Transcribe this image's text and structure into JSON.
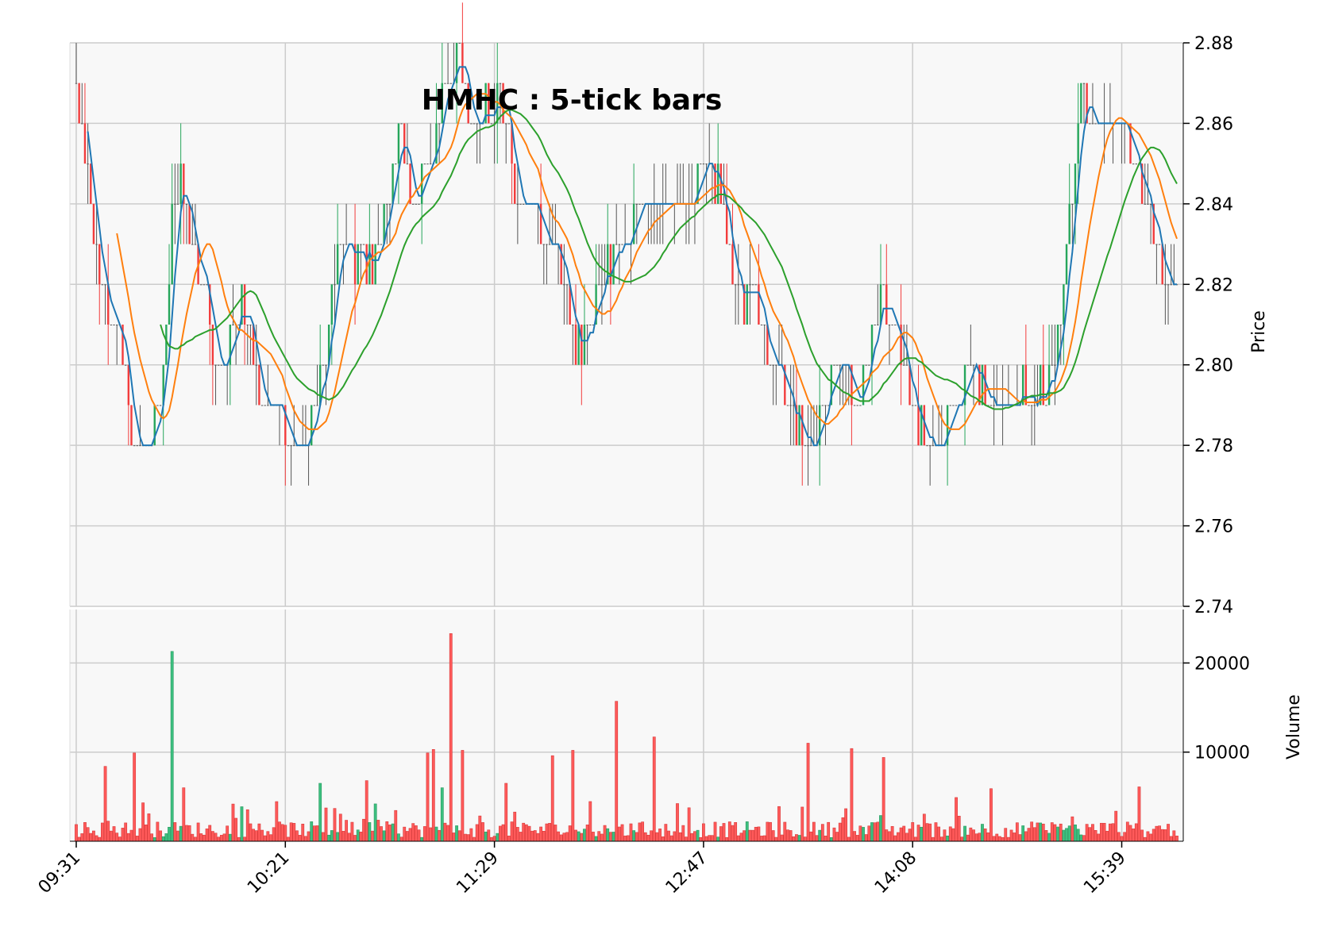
{
  "chart_data": {
    "type": "candlestick",
    "title": "HMHC : 5-tick bars",
    "price_panel": {
      "ylabel": "Price",
      "ylim": [
        2.74,
        2.88
      ],
      "yticks": [
        "2.74",
        "2.76",
        "2.78",
        "2.80",
        "2.82",
        "2.84",
        "2.86",
        "2.88"
      ],
      "grid": true
    },
    "volume_panel": {
      "ylabel": "Volume",
      "ylim": [
        0,
        26000
      ],
      "yticks": [
        "10000",
        "20000"
      ],
      "grid": true
    },
    "xticks": [
      "09:31",
      "10:21",
      "11:29",
      "12:47",
      "14:08",
      "15:39"
    ],
    "colors": {
      "up": "#26a65b",
      "down": "#f23c3c",
      "flat": "#555555",
      "ma_fast": "#1f77b4",
      "ma_mid": "#ff7f0e",
      "ma_slow": "#2ca02c",
      "panel_bg": "#f8f8f8",
      "grid": "#cccccc"
    },
    "moving_averages": [
      {
        "window": 5,
        "color": "#1f77b4"
      },
      {
        "window": 15,
        "color": "#ff7f0e"
      },
      {
        "window": 30,
        "color": "#2ca02c"
      }
    ],
    "price_path": [
      [
        0,
        2.866
      ],
      [
        3,
        2.852
      ],
      [
        8,
        2.822
      ],
      [
        12,
        2.812
      ],
      [
        16,
        2.806
      ],
      [
        19,
        2.782
      ],
      [
        22,
        2.776
      ],
      [
        26,
        2.78
      ],
      [
        30,
        2.8
      ],
      [
        33,
        2.838
      ],
      [
        36,
        2.844
      ],
      [
        40,
        2.826
      ],
      [
        44,
        2.82
      ],
      [
        48,
        2.8
      ],
      [
        50,
        2.796
      ],
      [
        54,
        2.81
      ],
      [
        58,
        2.814
      ],
      [
        62,
        2.8
      ],
      [
        66,
        2.79
      ],
      [
        70,
        2.786
      ],
      [
        74,
        2.782
      ],
      [
        80,
        2.784
      ],
      [
        85,
        2.798
      ],
      [
        88,
        2.822
      ],
      [
        92,
        2.83
      ],
      [
        96,
        2.826
      ],
      [
        100,
        2.822
      ],
      [
        104,
        2.83
      ],
      [
        108,
        2.846
      ],
      [
        112,
        2.856
      ],
      [
        116,
        2.84
      ],
      [
        120,
        2.845
      ],
      [
        124,
        2.86
      ],
      [
        128,
        2.872
      ],
      [
        132,
        2.874
      ],
      [
        135,
        2.864
      ],
      [
        138,
        2.862
      ],
      [
        141,
        2.866
      ],
      [
        145,
        2.866
      ],
      [
        148,
        2.858
      ],
      [
        152,
        2.842
      ],
      [
        158,
        2.84
      ],
      [
        163,
        2.832
      ],
      [
        168,
        2.82
      ],
      [
        172,
        2.802
      ],
      [
        176,
        2.808
      ],
      [
        180,
        2.82
      ],
      [
        185,
        2.826
      ],
      [
        190,
        2.834
      ],
      [
        194,
        2.844
      ],
      [
        198,
        2.842
      ],
      [
        202,
        2.838
      ],
      [
        206,
        2.84
      ],
      [
        210,
        2.842
      ],
      [
        214,
        2.846
      ],
      [
        218,
        2.852
      ],
      [
        222,
        2.84
      ],
      [
        226,
        2.822
      ],
      [
        230,
        2.812
      ],
      [
        234,
        2.818
      ],
      [
        238,
        2.804
      ],
      [
        242,
        2.796
      ],
      [
        246,
        2.79
      ],
      [
        250,
        2.782
      ],
      [
        254,
        2.78
      ],
      [
        258,
        2.79
      ],
      [
        262,
        2.8
      ],
      [
        266,
        2.796
      ],
      [
        270,
        2.792
      ],
      [
        274,
        2.81
      ],
      [
        278,
        2.818
      ],
      [
        282,
        2.808
      ],
      [
        286,
        2.798
      ],
      [
        290,
        2.784
      ],
      [
        294,
        2.778
      ],
      [
        298,
        2.78
      ],
      [
        302,
        2.786
      ],
      [
        306,
        2.796
      ],
      [
        310,
        2.798
      ],
      [
        314,
        2.794
      ],
      [
        318,
        2.79
      ],
      [
        322,
        2.786
      ],
      [
        326,
        2.794
      ],
      [
        330,
        2.792
      ],
      [
        334,
        2.796
      ],
      [
        338,
        2.804
      ],
      [
        342,
        2.836
      ],
      [
        346,
        2.866
      ],
      [
        350,
        2.86
      ],
      [
        356,
        2.86
      ],
      [
        362,
        2.86
      ],
      [
        366,
        2.85
      ],
      [
        370,
        2.836
      ],
      [
        374,
        2.822
      ],
      [
        378,
        2.82
      ]
    ],
    "volume_spikes": [
      [
        10,
        8400
      ],
      [
        20,
        9900
      ],
      [
        33,
        21300
      ],
      [
        37,
        6000
      ],
      [
        84,
        6500
      ],
      [
        100,
        6800
      ],
      [
        121,
        9900
      ],
      [
        123,
        10300
      ],
      [
        126,
        6000
      ],
      [
        129,
        23300
      ],
      [
        133,
        10200
      ],
      [
        148,
        6500
      ],
      [
        164,
        9600
      ],
      [
        171,
        10200
      ],
      [
        186,
        15700
      ],
      [
        199,
        11700
      ],
      [
        252,
        11000
      ],
      [
        267,
        10400
      ],
      [
        278,
        9400
      ],
      [
        315,
        5900
      ],
      [
        366,
        6100
      ]
    ]
  }
}
